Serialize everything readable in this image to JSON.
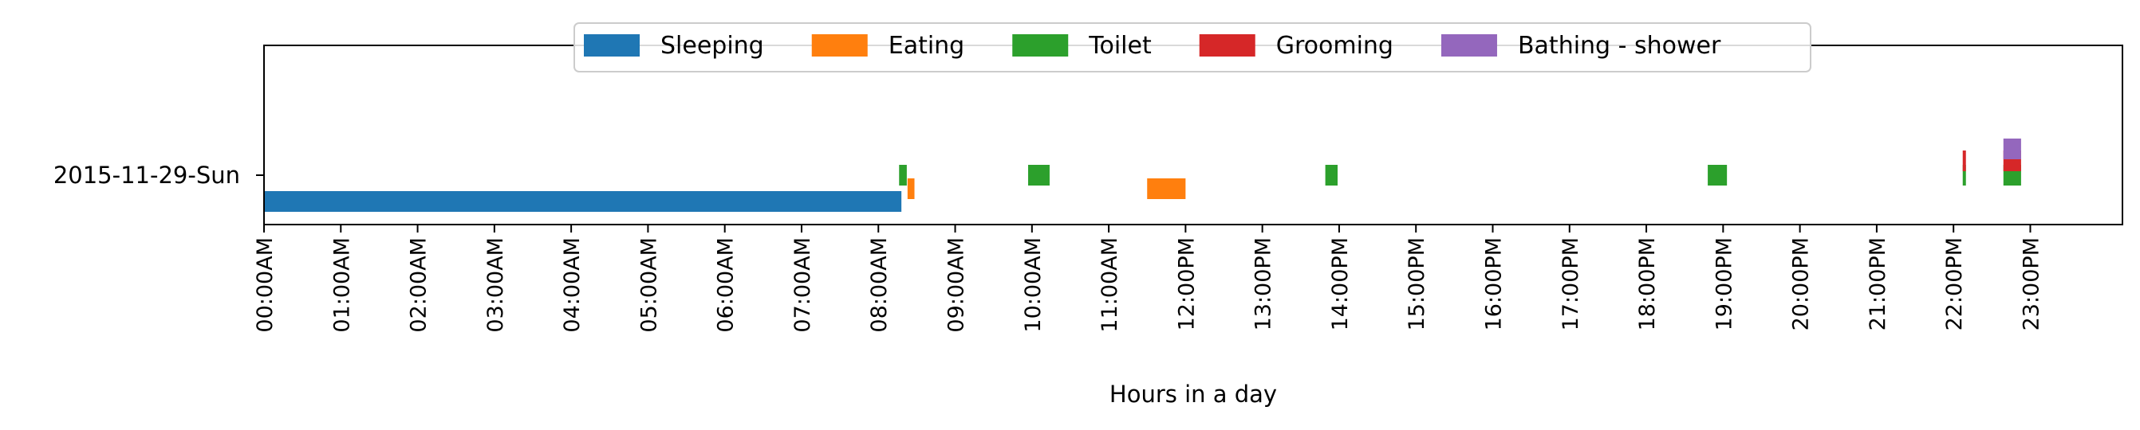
{
  "chart_data": {
    "type": "bar",
    "orientation": "horizontal",
    "xlabel": "Hours in a day",
    "ylabel": "",
    "xlim": [
      0,
      24
    ],
    "x_ticks": [
      {
        "value": 0,
        "label": "00:00AM"
      },
      {
        "value": 1,
        "label": "01:00AM"
      },
      {
        "value": 2,
        "label": "02:00AM"
      },
      {
        "value": 3,
        "label": "03:00AM"
      },
      {
        "value": 4,
        "label": "04:00AM"
      },
      {
        "value": 5,
        "label": "05:00AM"
      },
      {
        "value": 6,
        "label": "06:00AM"
      },
      {
        "value": 7,
        "label": "07:00AM"
      },
      {
        "value": 8,
        "label": "08:00AM"
      },
      {
        "value": 9,
        "label": "09:00AM"
      },
      {
        "value": 10,
        "label": "10:00AM"
      },
      {
        "value": 11,
        "label": "11:00AM"
      },
      {
        "value": 12,
        "label": "12:00PM"
      },
      {
        "value": 13,
        "label": "13:00PM"
      },
      {
        "value": 14,
        "label": "14:00PM"
      },
      {
        "value": 15,
        "label": "15:00PM"
      },
      {
        "value": 16,
        "label": "16:00PM"
      },
      {
        "value": 17,
        "label": "17:00PM"
      },
      {
        "value": 18,
        "label": "18:00PM"
      },
      {
        "value": 19,
        "label": "19:00PM"
      },
      {
        "value": 20,
        "label": "20:00PM"
      },
      {
        "value": 21,
        "label": "21:00PM"
      },
      {
        "value": 22,
        "label": "22:00PM"
      },
      {
        "value": 23,
        "label": "23:00PM"
      }
    ],
    "categories": [
      "2015-11-29-Sun"
    ],
    "grid": false,
    "legend_position": "top-center",
    "series": [
      {
        "name": "Sleeping",
        "color": "#1f77b4",
        "intervals": [
          {
            "start": 0.0,
            "end": 8.3
          }
        ]
      },
      {
        "name": "Eating",
        "color": "#ff7f0e",
        "intervals": [
          {
            "start": 8.38,
            "end": 8.47
          },
          {
            "start": 11.5,
            "end": 12.0
          }
        ]
      },
      {
        "name": "Toilet",
        "color": "#2ca02c",
        "intervals": [
          {
            "start": 8.27,
            "end": 8.37
          },
          {
            "start": 9.95,
            "end": 10.23
          },
          {
            "start": 13.82,
            "end": 13.98
          },
          {
            "start": 18.8,
            "end": 19.05
          },
          {
            "start": 22.12,
            "end": 22.15
          },
          {
            "start": 22.65,
            "end": 22.88
          }
        ]
      },
      {
        "name": "Grooming",
        "color": "#d62728",
        "intervals": [
          {
            "start": 22.12,
            "end": 22.15
          },
          {
            "start": 22.65,
            "end": 22.88
          }
        ]
      },
      {
        "name": "Bathing - shower",
        "color": "#9467bd",
        "intervals": [
          {
            "start": 22.65,
            "end": 22.88
          }
        ]
      }
    ]
  }
}
